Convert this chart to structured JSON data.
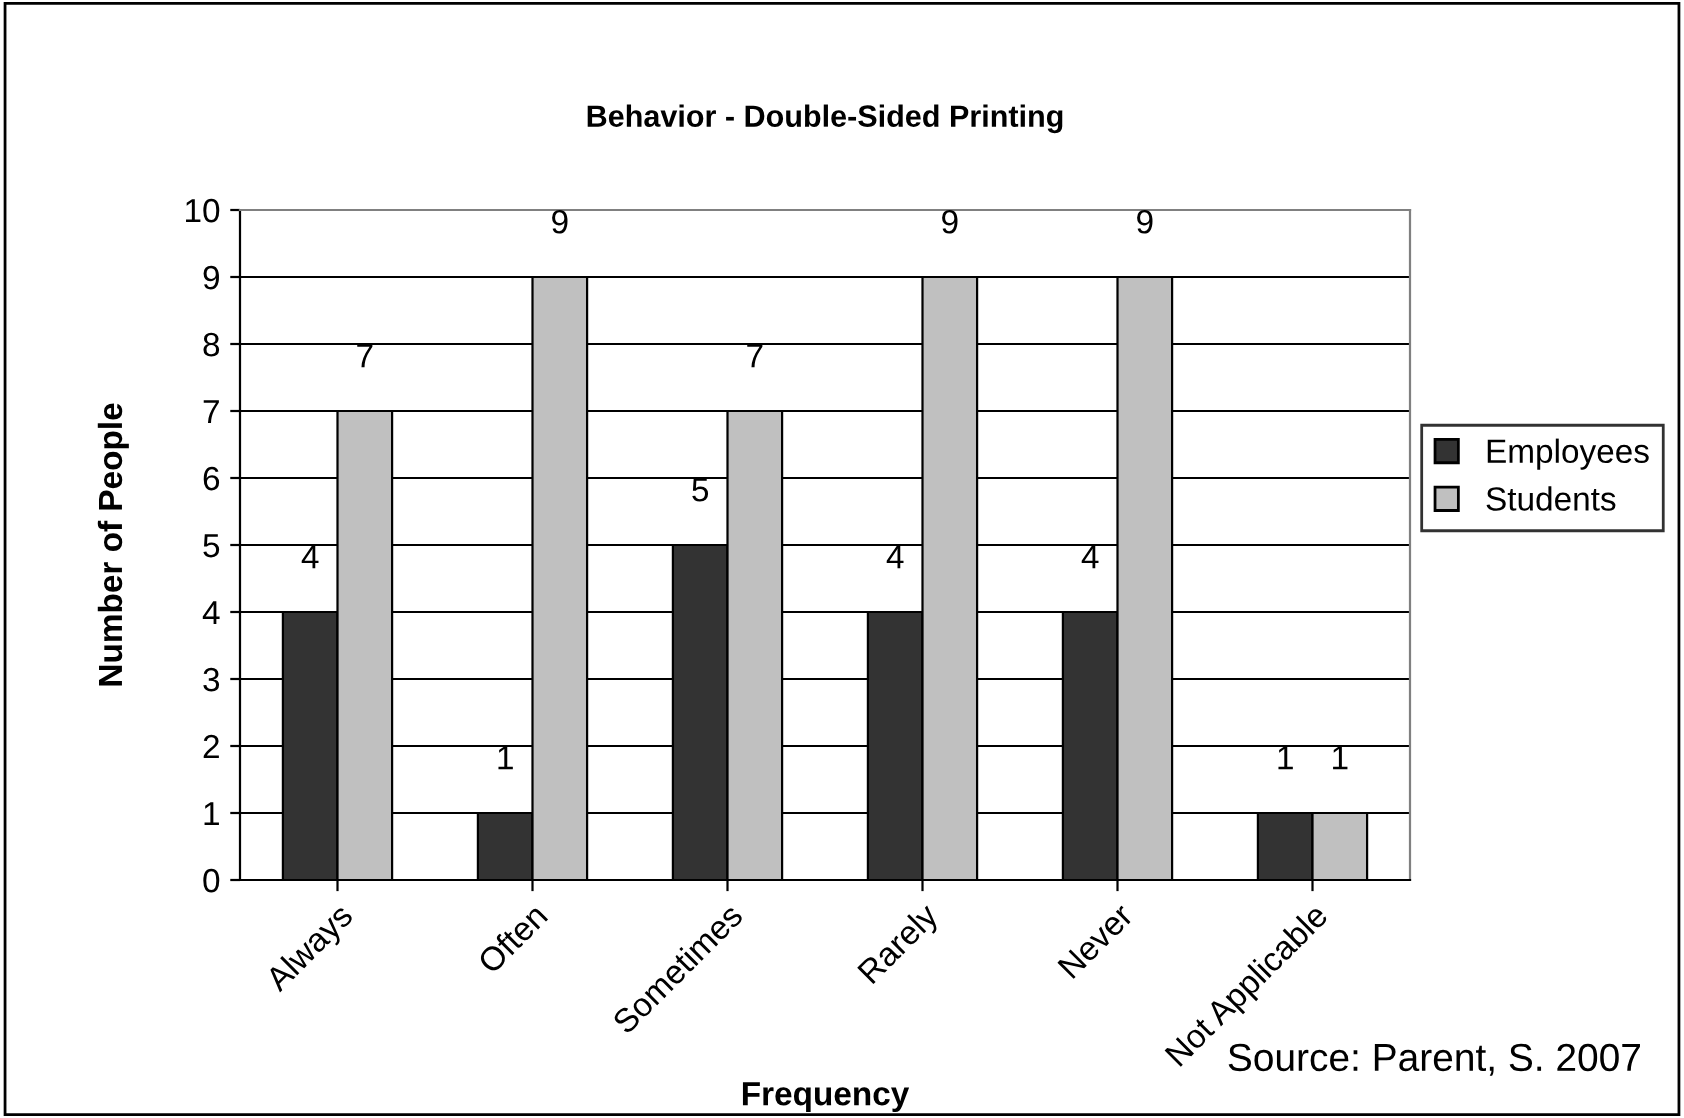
{
  "chart_data": {
    "type": "bar",
    "title": "Behavior - Double-Sided Printing",
    "xlabel": "Frequency",
    "ylabel": "Number of People",
    "categories": [
      "Always",
      "Often",
      "Sometimes",
      "Rarely",
      "Never",
      "Not Applicable"
    ],
    "series": [
      {
        "name": "Employees",
        "color": "#333333",
        "values": [
          4,
          1,
          5,
          4,
          4,
          1
        ]
      },
      {
        "name": "Students",
        "color": "#c0c0c0",
        "values": [
          7,
          9,
          7,
          9,
          9,
          1
        ]
      }
    ],
    "ylim": [
      0,
      10
    ],
    "yticks": [
      0,
      1,
      2,
      3,
      4,
      5,
      6,
      7,
      8,
      9,
      10
    ],
    "grid": "y",
    "legend": "right",
    "data_labels": true,
    "annotations": [
      "Source: Parent, S. 2007"
    ]
  }
}
